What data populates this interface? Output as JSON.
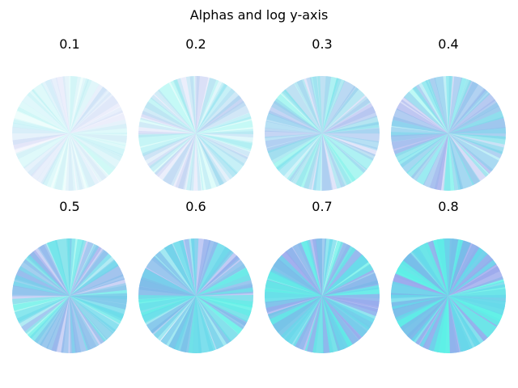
{
  "figure": {
    "title": "Alphas and log y-axis"
  },
  "chart_data": {
    "type": "bar",
    "projection": "polar",
    "yscale": "log",
    "n_bars": 60,
    "bar_colors": [
      "#5df0e6",
      "#7ab6e8",
      "#9aa8ec",
      "#66d8ea"
    ],
    "grid": false,
    "axis_visible": false,
    "panels": [
      {
        "title": "0.1",
        "alpha": 0.1
      },
      {
        "title": "0.2",
        "alpha": 0.2
      },
      {
        "title": "0.3",
        "alpha": 0.3
      },
      {
        "title": "0.4",
        "alpha": 0.4
      },
      {
        "title": "0.5",
        "alpha": 0.5
      },
      {
        "title": "0.6",
        "alpha": 0.6
      },
      {
        "title": "0.7",
        "alpha": 0.7
      },
      {
        "title": "0.8",
        "alpha": 0.8
      }
    ]
  }
}
